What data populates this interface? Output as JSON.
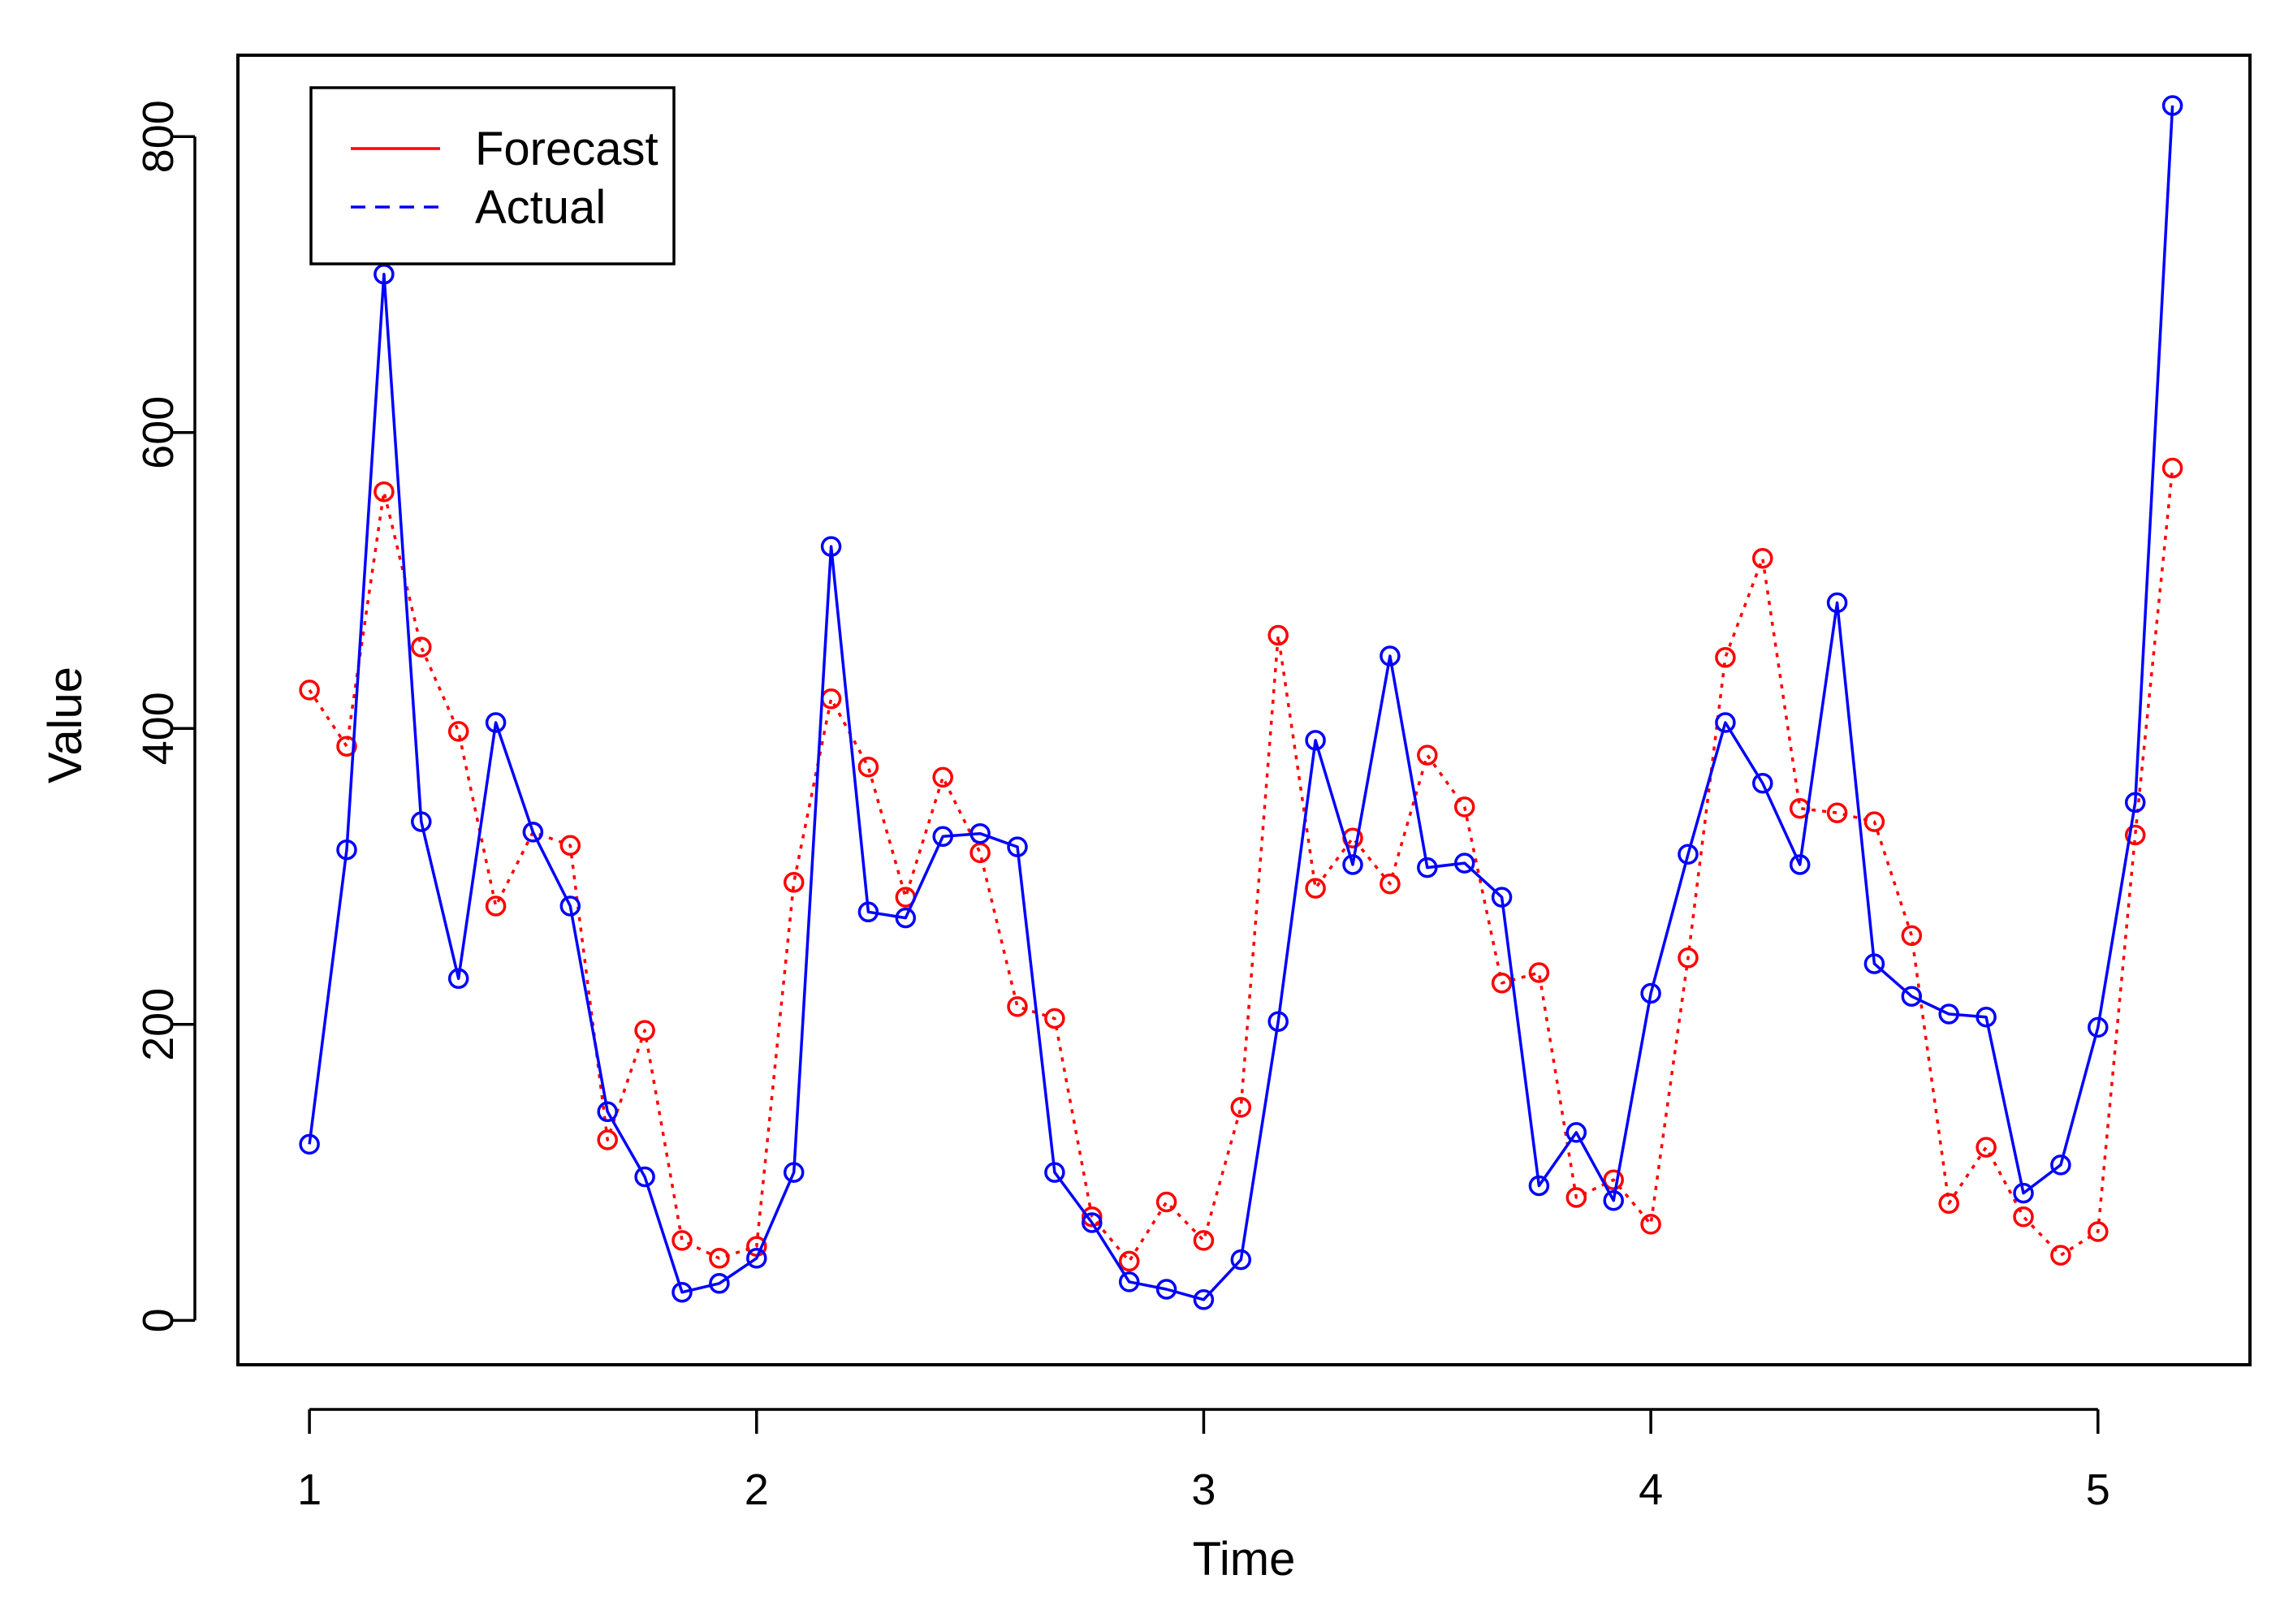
{
  "chart_data": {
    "type": "line",
    "title": "",
    "xlabel": "Time",
    "ylabel": "Value",
    "xlim": [
      0.84,
      5.34
    ],
    "ylim": [
      -30,
      855
    ],
    "xticks": [
      1,
      2,
      3,
      4,
      5
    ],
    "yticks": [
      0,
      200,
      400,
      600,
      800
    ],
    "x_tick_labels": [
      "1",
      "2",
      "3",
      "4",
      "5"
    ],
    "y_tick_labels": [
      "0",
      "200",
      "400",
      "600",
      "800"
    ],
    "frequency": 12,
    "start": 1,
    "legend": {
      "position": "top-left",
      "entries": [
        "Forecast",
        "Actual"
      ]
    },
    "series": [
      {
        "name": "Forecast",
        "color": "#ff0000",
        "line_style": "dotted",
        "marker": "circle",
        "values": [
          426,
          388,
          560,
          455,
          398,
          280,
          330,
          321,
          122,
          196,
          54,
          42,
          50,
          296,
          420,
          374,
          286,
          367,
          316,
          212,
          204,
          70,
          40,
          80,
          54,
          144,
          463,
          292,
          326,
          295,
          382,
          347,
          228,
          235,
          83,
          95,
          65,
          245,
          448,
          515,
          346,
          343,
          337,
          260,
          79,
          117,
          70,
          44,
          60,
          328,
          576
        ]
      },
      {
        "name": "Actual",
        "color": "#0000ff",
        "line_style": "solid",
        "marker": "circle",
        "values": [
          119,
          318,
          707,
          337,
          231,
          404,
          330,
          280,
          141,
          97,
          19,
          25,
          42,
          100,
          523,
          276,
          272,
          327,
          329,
          320,
          100,
          66,
          26,
          21,
          14,
          41,
          202,
          392,
          308,
          449,
          306,
          309,
          286,
          91,
          127,
          81,
          221,
          315,
          404,
          363,
          308,
          485,
          241,
          219,
          207,
          205,
          86,
          105,
          198,
          350,
          821
        ]
      }
    ]
  }
}
